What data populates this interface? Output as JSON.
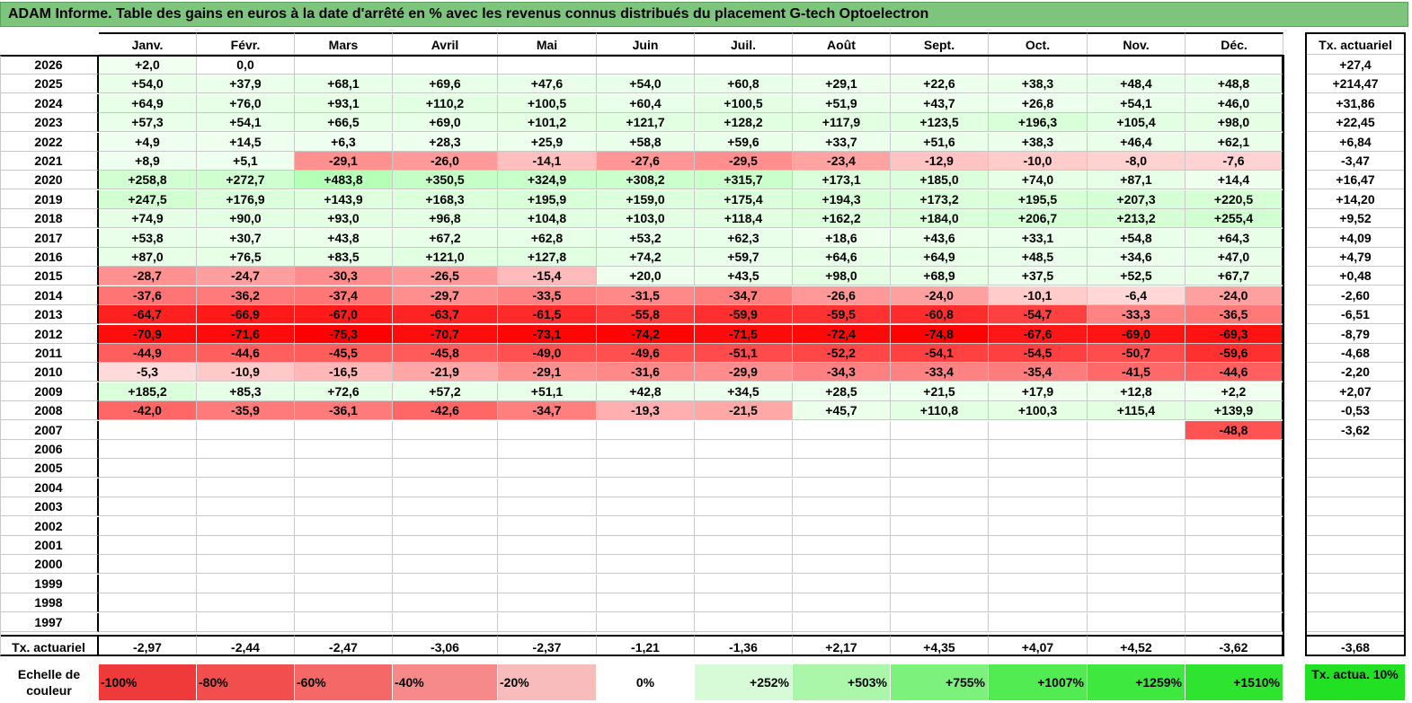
{
  "title": "ADAM Informe. Table des gains en euros à la date d'arrêté en % avec les revenus connus distribués du placement G-tech Optoelectron",
  "months": [
    "Janv.",
    "Févr.",
    "Mars",
    "Avril",
    "Mai",
    "Juin",
    "Juil.",
    "Août",
    "Sept.",
    "Oct.",
    "Nov.",
    "Déc."
  ],
  "side_header": "Tx. actuariel",
  "rows": [
    {
      "year": "2026",
      "vals": [
        "+2,0",
        "0,0",
        "",
        "",
        "",
        "",
        "",
        "",
        "",
        "",
        "",
        ""
      ],
      "tx": "+27,4"
    },
    {
      "year": "2025",
      "vals": [
        "+54,0",
        "+37,9",
        "+68,1",
        "+69,6",
        "+47,6",
        "+54,0",
        "+60,8",
        "+29,1",
        "+22,6",
        "+38,3",
        "+48,4",
        "+48,8"
      ],
      "tx": "+214,47"
    },
    {
      "year": "2024",
      "vals": [
        "+64,9",
        "+76,0",
        "+93,1",
        "+110,2",
        "+100,5",
        "+60,4",
        "+100,5",
        "+51,9",
        "+43,7",
        "+26,8",
        "+54,1",
        "+46,0"
      ],
      "tx": "+31,86"
    },
    {
      "year": "2023",
      "vals": [
        "+57,3",
        "+54,1",
        "+66,5",
        "+69,0",
        "+101,2",
        "+121,7",
        "+128,2",
        "+117,9",
        "+123,5",
        "+196,3",
        "+105,4",
        "+98,0"
      ],
      "tx": "+22,45"
    },
    {
      "year": "2022",
      "vals": [
        "+4,9",
        "+14,5",
        "+6,3",
        "+28,3",
        "+25,9",
        "+58,8",
        "+59,6",
        "+33,7",
        "+51,6",
        "+38,3",
        "+46,4",
        "+62,1"
      ],
      "tx": "+6,84"
    },
    {
      "year": "2021",
      "vals": [
        "+8,9",
        "+5,1",
        "-29,1",
        "-26,0",
        "-14,1",
        "-27,6",
        "-29,5",
        "-23,4",
        "-12,9",
        "-10,0",
        "-8,0",
        "-7,6"
      ],
      "tx": "-3,47"
    },
    {
      "year": "2020",
      "vals": [
        "+258,8",
        "+272,7",
        "+483,8",
        "+350,5",
        "+324,9",
        "+308,2",
        "+315,7",
        "+173,1",
        "+185,0",
        "+74,0",
        "+87,1",
        "+14,4"
      ],
      "tx": "+16,47"
    },
    {
      "year": "2019",
      "vals": [
        "+247,5",
        "+176,9",
        "+143,9",
        "+168,3",
        "+195,9",
        "+159,0",
        "+175,4",
        "+194,3",
        "+173,2",
        "+195,5",
        "+207,3",
        "+220,5"
      ],
      "tx": "+14,20"
    },
    {
      "year": "2018",
      "vals": [
        "+74,9",
        "+90,0",
        "+93,0",
        "+96,8",
        "+104,8",
        "+103,0",
        "+118,4",
        "+162,2",
        "+184,0",
        "+206,7",
        "+213,2",
        "+255,4"
      ],
      "tx": "+9,52"
    },
    {
      "year": "2017",
      "vals": [
        "+53,8",
        "+30,7",
        "+43,8",
        "+67,2",
        "+62,8",
        "+53,2",
        "+62,3",
        "+18,6",
        "+43,6",
        "+33,1",
        "+54,8",
        "+64,3"
      ],
      "tx": "+4,09"
    },
    {
      "year": "2016",
      "vals": [
        "+87,0",
        "+76,5",
        "+83,5",
        "+121,0",
        "+127,8",
        "+74,2",
        "+59,7",
        "+64,6",
        "+64,9",
        "+48,5",
        "+34,6",
        "+47,0"
      ],
      "tx": "+4,79"
    },
    {
      "year": "2015",
      "vals": [
        "-28,7",
        "-24,7",
        "-30,3",
        "-26,5",
        "-15,4",
        "+20,0",
        "+43,5",
        "+98,0",
        "+68,9",
        "+37,5",
        "+52,5",
        "+67,7"
      ],
      "tx": "+0,48"
    },
    {
      "year": "2014",
      "vals": [
        "-37,6",
        "-36,2",
        "-37,4",
        "-29,7",
        "-33,5",
        "-31,5",
        "-34,7",
        "-26,6",
        "-24,0",
        "-10,1",
        "-6,4",
        "-24,0"
      ],
      "tx": "-2,60"
    },
    {
      "year": "2013",
      "vals": [
        "-64,7",
        "-66,9",
        "-67,0",
        "-63,7",
        "-61,5",
        "-55,8",
        "-59,9",
        "-59,5",
        "-60,8",
        "-54,7",
        "-33,3",
        "-36,5"
      ],
      "tx": "-6,51"
    },
    {
      "year": "2012",
      "vals": [
        "-70,9",
        "-71,6",
        "-75,3",
        "-70,7",
        "-73,1",
        "-74,2",
        "-71,5",
        "-72,4",
        "-74,8",
        "-67,6",
        "-69,0",
        "-69,3"
      ],
      "tx": "-8,79"
    },
    {
      "year": "2011",
      "vals": [
        "-44,9",
        "-44,6",
        "-45,5",
        "-45,8",
        "-49,0",
        "-49,6",
        "-51,1",
        "-52,2",
        "-54,1",
        "-54,5",
        "-50,7",
        "-59,6"
      ],
      "tx": "-4,68"
    },
    {
      "year": "2010",
      "vals": [
        "-5,3",
        "-10,9",
        "-16,5",
        "-21,9",
        "-29,1",
        "-31,6",
        "-29,9",
        "-34,3",
        "-33,4",
        "-35,4",
        "-41,5",
        "-44,6"
      ],
      "tx": "-2,20"
    },
    {
      "year": "2009",
      "vals": [
        "+185,2",
        "+85,3",
        "+72,6",
        "+57,2",
        "+51,1",
        "+42,8",
        "+34,5",
        "+28,5",
        "+21,5",
        "+17,9",
        "+12,8",
        "+2,2"
      ],
      "tx": "+2,07"
    },
    {
      "year": "2008",
      "vals": [
        "-42,0",
        "-35,9",
        "-36,1",
        "-42,6",
        "-34,7",
        "-19,3",
        "-21,5",
        "+45,7",
        "+110,8",
        "+100,3",
        "+115,4",
        "+139,9"
      ],
      "tx": "-0,53"
    },
    {
      "year": "2007",
      "vals": [
        "",
        "",
        "",
        "",
        "",
        "",
        "",
        "",
        "",
        "",
        "",
        "-48,8"
      ],
      "tx": "-3,62"
    },
    {
      "year": "2006",
      "vals": [
        "",
        "",
        "",
        "",
        "",
        "",
        "",
        "",
        "",
        "",
        "",
        ""
      ],
      "tx": ""
    },
    {
      "year": "2005",
      "vals": [
        "",
        "",
        "",
        "",
        "",
        "",
        "",
        "",
        "",
        "",
        "",
        ""
      ],
      "tx": ""
    },
    {
      "year": "2004",
      "vals": [
        "",
        "",
        "",
        "",
        "",
        "",
        "",
        "",
        "",
        "",
        "",
        ""
      ],
      "tx": ""
    },
    {
      "year": "2003",
      "vals": [
        "",
        "",
        "",
        "",
        "",
        "",
        "",
        "",
        "",
        "",
        "",
        ""
      ],
      "tx": ""
    },
    {
      "year": "2002",
      "vals": [
        "",
        "",
        "",
        "",
        "",
        "",
        "",
        "",
        "",
        "",
        "",
        ""
      ],
      "tx": ""
    },
    {
      "year": "2001",
      "vals": [
        "",
        "",
        "",
        "",
        "",
        "",
        "",
        "",
        "",
        "",
        "",
        ""
      ],
      "tx": ""
    },
    {
      "year": "2000",
      "vals": [
        "",
        "",
        "",
        "",
        "",
        "",
        "",
        "",
        "",
        "",
        "",
        ""
      ],
      "tx": ""
    },
    {
      "year": "1999",
      "vals": [
        "",
        "",
        "",
        "",
        "",
        "",
        "",
        "",
        "",
        "",
        "",
        ""
      ],
      "tx": ""
    },
    {
      "year": "1998",
      "vals": [
        "",
        "",
        "",
        "",
        "",
        "",
        "",
        "",
        "",
        "",
        "",
        ""
      ],
      "tx": ""
    },
    {
      "year": "1997",
      "vals": [
        "",
        "",
        "",
        "",
        "",
        "",
        "",
        "",
        "",
        "",
        "",
        ""
      ],
      "tx": ""
    }
  ],
  "footer": {
    "label": "Tx. actuariel",
    "vals": [
      "-2,97",
      "-2,44",
      "-2,47",
      "-3,06",
      "-2,37",
      "-1,21",
      "-1,36",
      "+2,17",
      "+4,35",
      "+4,07",
      "+4,52",
      "-3,62"
    ],
    "tx": "-3,68"
  },
  "scale": {
    "label": "Echelle de couleur",
    "items": [
      {
        "label": "-100%",
        "color": "#f03a3a"
      },
      {
        "label": "-80%",
        "color": "#f24e4e"
      },
      {
        "label": "-60%",
        "color": "#f46868"
      },
      {
        "label": "-40%",
        "color": "#f68a8a"
      },
      {
        "label": "-20%",
        "color": "#f9bcbc"
      },
      {
        "label": "0%",
        "color": "#ffffff"
      },
      {
        "label": "+252%",
        "color": "#d6fbd6"
      },
      {
        "label": "+503%",
        "color": "#aaf7aa"
      },
      {
        "label": "+755%",
        "color": "#7cf27c"
      },
      {
        "label": "+1007%",
        "color": "#52ec52"
      },
      {
        "label": "+1259%",
        "color": "#3ee83e"
      },
      {
        "label": "+1510%",
        "color": "#2ee42e"
      }
    ],
    "tx_label": "Tx. actua. 10%",
    "tx_color": "#22e022"
  }
}
